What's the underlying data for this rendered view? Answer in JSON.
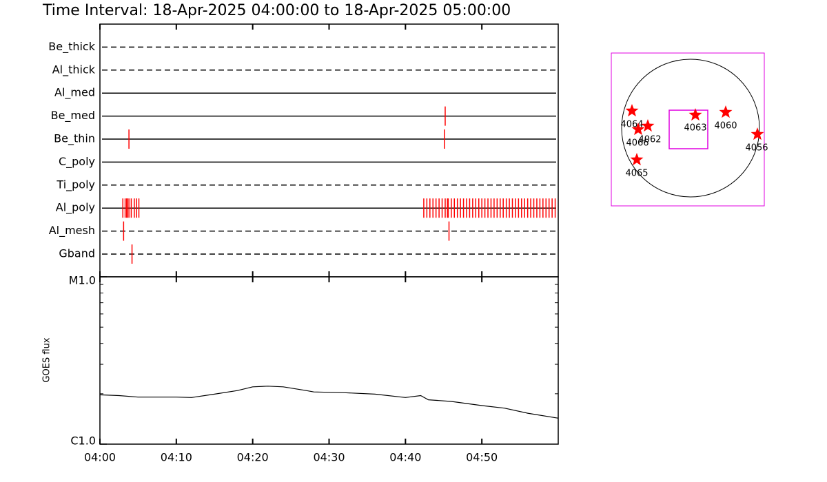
{
  "chart_data": [
    {
      "type": "timeline",
      "title": "Time Interval: 18-Apr-2025 04:00:00 to 18-Apr-2025 05:00:00",
      "categories": [
        "Be_thick",
        "Al_thick",
        "Al_med",
        "Be_med",
        "Be_thin",
        "C_poly",
        "Ti_poly",
        "Al_poly",
        "Al_mesh",
        "Gband"
      ],
      "line_styles": [
        "dashed",
        "dashed",
        "solid",
        "solid",
        "solid",
        "solid",
        "dashed",
        "solid",
        "dashed",
        "dashed"
      ],
      "events": [
        [],
        [],
        [],
        [
          45.2
        ],
        [
          3.8,
          45.1
        ],
        [],
        [],
        [
          3.0,
          3.3,
          3.5,
          3.6,
          3.8,
          4.1,
          4.5,
          4.8,
          5.1,
          42.4,
          42.8,
          43.2,
          43.6,
          44.0,
          44.4,
          44.8,
          45.2,
          45.5,
          45.6,
          46.0,
          46.4,
          46.8,
          47.2,
          47.6,
          48.0,
          48.4,
          48.8,
          49.2,
          49.6,
          50.0,
          50.4,
          50.8,
          51.2,
          51.6,
          52.0,
          52.4,
          52.8,
          53.2,
          53.6,
          54.0,
          54.4,
          54.8,
          55.2,
          55.6,
          56.0,
          56.4,
          56.8,
          57.2,
          57.6,
          58.0,
          58.4,
          58.8,
          59.2,
          59.6
        ],
        [
          3.1,
          45.7
        ],
        [
          4.2
        ]
      ],
      "color": "#ff0000",
      "xlim": [
        0,
        60
      ],
      "xticks": [
        0,
        10,
        20,
        30,
        40,
        50
      ]
    },
    {
      "type": "line",
      "ylabel": "GOES flux",
      "x": [
        0,
        2.5,
        5,
        10,
        12,
        15,
        18,
        20,
        22,
        24,
        27,
        28,
        32,
        36,
        40,
        42,
        43,
        46,
        50,
        53,
        56,
        60
      ],
      "values": [
        1.97e-06,
        1.95e-06,
        1.91e-06,
        1.91e-06,
        1.9e-06,
        1.99e-06,
        2.09e-06,
        2.2e-06,
        2.22e-06,
        2.2e-06,
        2.09e-06,
        2.05e-06,
        2.03e-06,
        1.99e-06,
        1.9e-06,
        1.95e-06,
        1.84e-06,
        1.8e-06,
        1.7e-06,
        1.64e-06,
        1.53e-06,
        1.43e-06
      ],
      "color": "#000000",
      "log_scale": true,
      "xlim": [
        0,
        60
      ],
      "xticks": [
        {
          "value": 0,
          "label": "04:00"
        },
        {
          "value": 10,
          "label": "04:10"
        },
        {
          "value": 20,
          "label": "04:20"
        },
        {
          "value": 30,
          "label": "04:30"
        },
        {
          "value": 40,
          "label": "04:40"
        },
        {
          "value": 50,
          "label": "04:50"
        }
      ],
      "ylim": [
        1e-06,
        1e-05
      ],
      "yticks": [
        {
          "value": 1e-06,
          "label": "C1.0"
        },
        {
          "value": 1e-05,
          "label": "M1.0"
        }
      ],
      "yminorticks": [
        2e-06,
        3e-06,
        4e-06,
        5e-06,
        6e-06,
        7e-06,
        8e-06,
        9e-06
      ]
    }
  ],
  "map": {
    "regions": [
      "4064",
      "4066",
      "4062",
      "4063",
      "4060",
      "4056",
      "4065"
    ]
  }
}
